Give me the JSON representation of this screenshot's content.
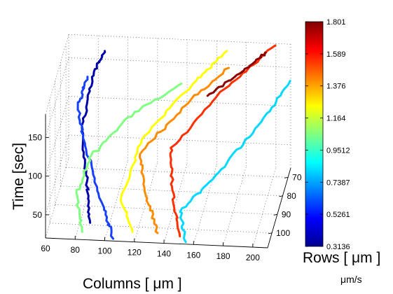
{
  "chart_data": {
    "type": "line",
    "title": "",
    "dimensions": "3d",
    "xlabel": "Columns [ μm ]",
    "ylabel": "Rows [ μm ]",
    "zlabel": "Time [sec]",
    "xlim": [
      60,
      210
    ],
    "ylim": [
      65,
      108
    ],
    "zlim": [
      20,
      180
    ],
    "x_ticks": [
      "60",
      "80",
      "100",
      "120",
      "140",
      "160",
      "180",
      "200"
    ],
    "y_ticks": [
      "70",
      "80",
      "90",
      "100"
    ],
    "z_ticks": [
      "50",
      "100",
      "150"
    ],
    "grid": true,
    "colorbar": {
      "label": "μm/s",
      "min": 0.3136,
      "max": 1.801,
      "ticks": [
        "1.801",
        "1.589",
        "1.376",
        "1.164",
        "0.9512",
        "0.7387",
        "0.5261",
        "0.3136"
      ]
    },
    "series": [
      {
        "color": "#0000a8",
        "points": [
          [
            89,
            105,
            35
          ],
          [
            85,
            100,
            75
          ],
          [
            80,
            95,
            130
          ],
          [
            83,
            85,
            175
          ],
          [
            88,
            75,
            185
          ]
        ]
      },
      {
        "color": "#1640ff",
        "points": [
          [
            105,
            106,
            18
          ],
          [
            95,
            100,
            50
          ],
          [
            82,
            95,
            110
          ],
          [
            76,
            92,
            155
          ],
          [
            80,
            85,
            175
          ]
        ]
      },
      {
        "color": "#80ff80",
        "points": [
          [
            84,
            106,
            25
          ],
          [
            78,
            100,
            60
          ],
          [
            85,
            92,
            90
          ],
          [
            110,
            80,
            120
          ],
          [
            138,
            70,
            135
          ]
        ]
      },
      {
        "color": "#00d8ff",
        "points": [
          [
            154,
            106,
            18
          ],
          [
            148,
            100,
            42
          ],
          [
            170,
            90,
            70
          ],
          [
            195,
            78,
            110
          ],
          [
            210,
            66,
            135
          ]
        ]
      },
      {
        "color": "#ffff00",
        "points": [
          [
            118,
            106,
            28
          ],
          [
            108,
            100,
            55
          ],
          [
            118,
            88,
            105
          ],
          [
            148,
            76,
            150
          ],
          [
            168,
            68,
            175
          ]
        ]
      },
      {
        "color": "#ff8c00",
        "points": [
          [
            135,
            106,
            28
          ],
          [
            125,
            100,
            60
          ],
          [
            118,
            92,
            95
          ],
          [
            142,
            80,
            128
          ],
          [
            170,
            70,
            158
          ]
        ]
      },
      {
        "color": "#ff3000",
        "points": [
          [
            150,
            106,
            25
          ],
          [
            142,
            98,
            65
          ],
          [
            138,
            90,
            100
          ],
          [
            170,
            78,
            150
          ],
          [
            200,
            66,
            180
          ]
        ]
      },
      {
        "color": "#8b0000",
        "points": [
          [
            160,
            82,
            150
          ],
          [
            185,
            74,
            170
          ],
          [
            195,
            70,
            180
          ]
        ]
      }
    ]
  }
}
